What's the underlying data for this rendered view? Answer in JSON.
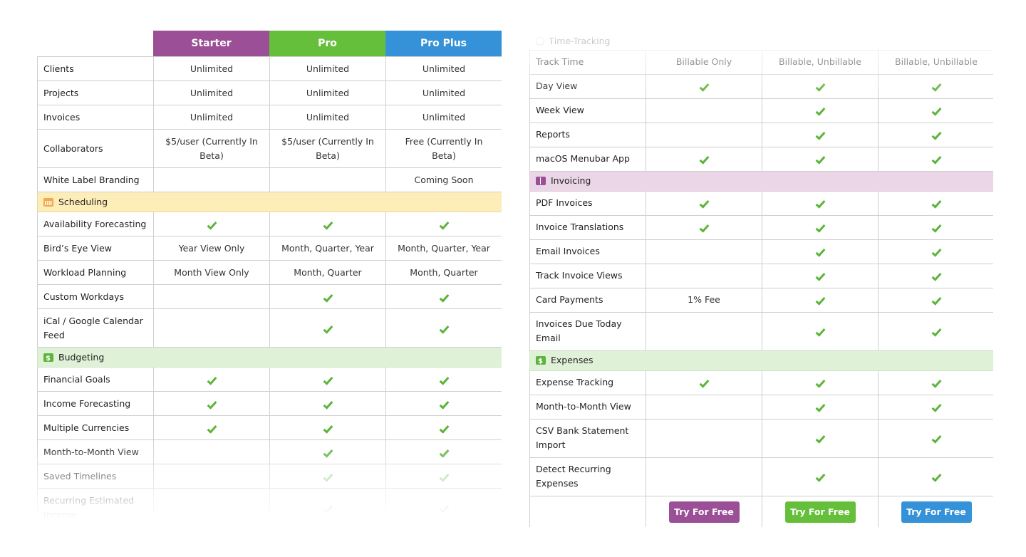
{
  "plans": [
    {
      "name": "Starter",
      "color": "#9b4f96"
    },
    {
      "name": "Pro",
      "color": "#66bf3b"
    },
    {
      "name": "Pro Plus",
      "color": "#3592d8"
    }
  ],
  "check_color": "#5cb43a",
  "left": {
    "general": [
      {
        "feature": "Clients",
        "values": [
          "Unlimited",
          "Unlimited",
          "Unlimited"
        ]
      },
      {
        "feature": "Projects",
        "values": [
          "Unlimited",
          "Unlimited",
          "Unlimited"
        ]
      },
      {
        "feature": "Invoices",
        "values": [
          "Unlimited",
          "Unlimited",
          "Unlimited"
        ]
      },
      {
        "feature": "Collaborators",
        "values": [
          "$5/user (Currently In Beta)",
          "$5/user (Currently In Beta)",
          "Free (Currently In Beta)"
        ]
      },
      {
        "feature": "White Label Branding",
        "values": [
          "",
          "",
          "Coming Soon"
        ]
      }
    ],
    "scheduling": {
      "title": "Scheduling",
      "icon": "calendar-icon",
      "rows": [
        {
          "feature": "Availability Forecasting",
          "values": [
            "check",
            "check",
            "check"
          ]
        },
        {
          "feature": "Bird’s Eye View",
          "values": [
            "Year View Only",
            "Month, Quarter, Year",
            "Month, Quarter, Year"
          ]
        },
        {
          "feature": "Workload Planning",
          "values": [
            "Month View Only",
            "Month, Quarter",
            "Month, Quarter"
          ]
        },
        {
          "feature": "Custom Workdays",
          "values": [
            "",
            "check",
            "check"
          ]
        },
        {
          "feature": "iCal / Google Calendar Feed",
          "values": [
            "",
            "check",
            "check"
          ]
        }
      ]
    },
    "budgeting": {
      "title": "Budgeting",
      "icon": "money-icon",
      "rows": [
        {
          "feature": "Financial Goals",
          "values": [
            "check",
            "check",
            "check"
          ]
        },
        {
          "feature": "Income Forecasting",
          "values": [
            "check",
            "check",
            "check"
          ]
        },
        {
          "feature": "Multiple Currencies",
          "values": [
            "check",
            "check",
            "check"
          ]
        },
        {
          "feature": "Month-to-Month View",
          "values": [
            "",
            "check",
            "check"
          ]
        },
        {
          "feature": "Saved Timelines",
          "values": [
            "",
            "check",
            "check"
          ]
        },
        {
          "feature": "Recurring Estimated Income",
          "values": [
            "",
            "check",
            "check"
          ]
        }
      ]
    }
  },
  "right": {
    "time_tracking": {
      "title": "Time-Tracking",
      "icon": "clock-icon",
      "rows": [
        {
          "feature": "Track Time",
          "values": [
            "Billable Only",
            "Billable, Unbillable",
            "Billable, Unbillable"
          ]
        },
        {
          "feature": "Day View",
          "values": [
            "check",
            "check",
            "check"
          ]
        },
        {
          "feature": "Week View",
          "values": [
            "",
            "check",
            "check"
          ]
        },
        {
          "feature": "Reports",
          "values": [
            "",
            "check",
            "check"
          ]
        },
        {
          "feature": "macOS Menubar App",
          "values": [
            "check",
            "check",
            "check"
          ]
        }
      ]
    },
    "invoicing": {
      "title": "Invoicing",
      "icon": "invoice-book-icon",
      "rows": [
        {
          "feature": "PDF Invoices",
          "values": [
            "check",
            "check",
            "check"
          ]
        },
        {
          "feature": "Invoice Translations",
          "values": [
            "check",
            "check",
            "check"
          ]
        },
        {
          "feature": "Email Invoices",
          "values": [
            "",
            "check",
            "check"
          ]
        },
        {
          "feature": "Track Invoice Views",
          "values": [
            "",
            "check",
            "check"
          ]
        },
        {
          "feature": "Card Payments",
          "values": [
            "1% Fee",
            "check",
            "check"
          ]
        },
        {
          "feature": "Invoices Due Today Email",
          "values": [
            "",
            "check",
            "check"
          ]
        }
      ]
    },
    "expenses": {
      "title": "Expenses",
      "icon": "money-icon",
      "rows": [
        {
          "feature": "Expense Tracking",
          "values": [
            "check",
            "check",
            "check"
          ]
        },
        {
          "feature": "Month-to-Month View",
          "values": [
            "",
            "check",
            "check"
          ]
        },
        {
          "feature": "CSV Bank Statement Import",
          "values": [
            "",
            "check",
            "check"
          ]
        },
        {
          "feature": "Detect Recurring Expenses",
          "values": [
            "",
            "check",
            "check"
          ]
        }
      ]
    },
    "cta_label": "Try For Free"
  }
}
